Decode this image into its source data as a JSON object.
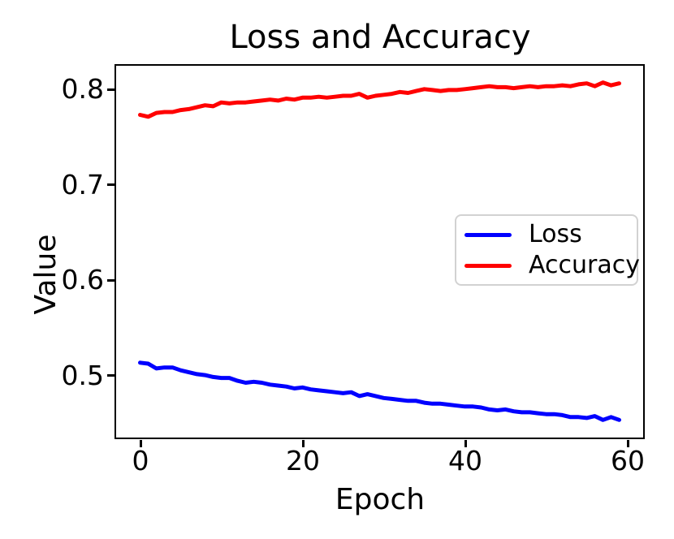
{
  "figure": {
    "title": "Loss and Accuracy",
    "xlabel": "Epoch",
    "ylabel": "Value"
  },
  "chart_data": {
    "type": "line",
    "title": "Loss and Accuracy",
    "xlabel": "Epoch",
    "ylabel": "Value",
    "grid": false,
    "background_color": "#ffffff",
    "xlim": [
      -2.95,
      61.95
    ],
    "ylim": [
      0.4345,
      0.8245
    ],
    "x_ticks": [
      {
        "label": "0",
        "value": 0
      },
      {
        "label": "20",
        "value": 20
      },
      {
        "label": "40",
        "value": 40
      },
      {
        "label": "60",
        "value": 60
      }
    ],
    "y_ticks": [
      {
        "label": "0.5",
        "value": 0.5
      },
      {
        "label": "0.6",
        "value": 0.6
      },
      {
        "label": "0.7",
        "value": 0.7
      },
      {
        "label": "0.8",
        "value": 0.8
      }
    ],
    "legend": {
      "position": "center right",
      "border_color": "#d2d2d2"
    },
    "x": [
      0,
      1,
      2,
      3,
      4,
      5,
      6,
      7,
      8,
      9,
      10,
      11,
      12,
      13,
      14,
      15,
      16,
      17,
      18,
      19,
      20,
      21,
      22,
      23,
      24,
      25,
      26,
      27,
      28,
      29,
      30,
      31,
      32,
      33,
      34,
      35,
      36,
      37,
      38,
      39,
      40,
      41,
      42,
      43,
      44,
      45,
      46,
      47,
      48,
      49,
      50,
      51,
      52,
      53,
      54,
      55,
      56,
      57,
      58,
      59
    ],
    "series": [
      {
        "name": "Loss",
        "color": "#0000ff",
        "values": [
          0.513,
          0.512,
          0.507,
          0.508,
          0.508,
          0.505,
          0.503,
          0.501,
          0.5,
          0.498,
          0.497,
          0.497,
          0.494,
          0.492,
          0.493,
          0.492,
          0.49,
          0.489,
          0.488,
          0.486,
          0.487,
          0.485,
          0.484,
          0.483,
          0.482,
          0.481,
          0.482,
          0.478,
          0.48,
          0.478,
          0.476,
          0.475,
          0.474,
          0.473,
          0.473,
          0.471,
          0.47,
          0.47,
          0.469,
          0.468,
          0.467,
          0.467,
          0.466,
          0.464,
          0.463,
          0.464,
          0.462,
          0.461,
          0.461,
          0.46,
          0.459,
          0.459,
          0.458,
          0.456,
          0.456,
          0.455,
          0.457,
          0.453,
          0.456,
          0.453
        ]
      },
      {
        "name": "Accuracy",
        "color": "#ff0000",
        "values": [
          0.773,
          0.771,
          0.775,
          0.776,
          0.776,
          0.778,
          0.779,
          0.781,
          0.783,
          0.782,
          0.786,
          0.785,
          0.786,
          0.786,
          0.787,
          0.788,
          0.789,
          0.788,
          0.79,
          0.789,
          0.791,
          0.791,
          0.792,
          0.791,
          0.792,
          0.793,
          0.793,
          0.795,
          0.791,
          0.793,
          0.794,
          0.795,
          0.797,
          0.796,
          0.798,
          0.8,
          0.799,
          0.798,
          0.799,
          0.799,
          0.8,
          0.801,
          0.802,
          0.803,
          0.802,
          0.802,
          0.801,
          0.802,
          0.803,
          0.802,
          0.803,
          0.803,
          0.804,
          0.803,
          0.805,
          0.806,
          0.803,
          0.807,
          0.804,
          0.806
        ]
      }
    ]
  }
}
